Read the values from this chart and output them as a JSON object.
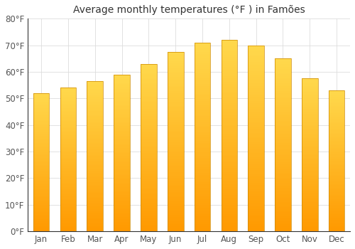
{
  "title": "Average monthly temperatures (°F ) in Famões",
  "months": [
    "Jan",
    "Feb",
    "Mar",
    "Apr",
    "May",
    "Jun",
    "Jul",
    "Aug",
    "Sep",
    "Oct",
    "Nov",
    "Dec"
  ],
  "values": [
    52,
    54,
    56.5,
    59,
    63,
    67.5,
    71,
    72,
    70,
    65,
    57.5,
    53
  ],
  "bar_color_top": "#FFCC44",
  "bar_color_bottom": "#FF9900",
  "bar_edge_color": "#CC8800",
  "background_color": "#FFFFFF",
  "grid_color": "#DDDDDD",
  "ylim": [
    0,
    80
  ],
  "yticks": [
    0,
    10,
    20,
    30,
    40,
    50,
    60,
    70,
    80
  ],
  "title_fontsize": 10,
  "tick_fontsize": 8.5,
  "bar_width": 0.6
}
